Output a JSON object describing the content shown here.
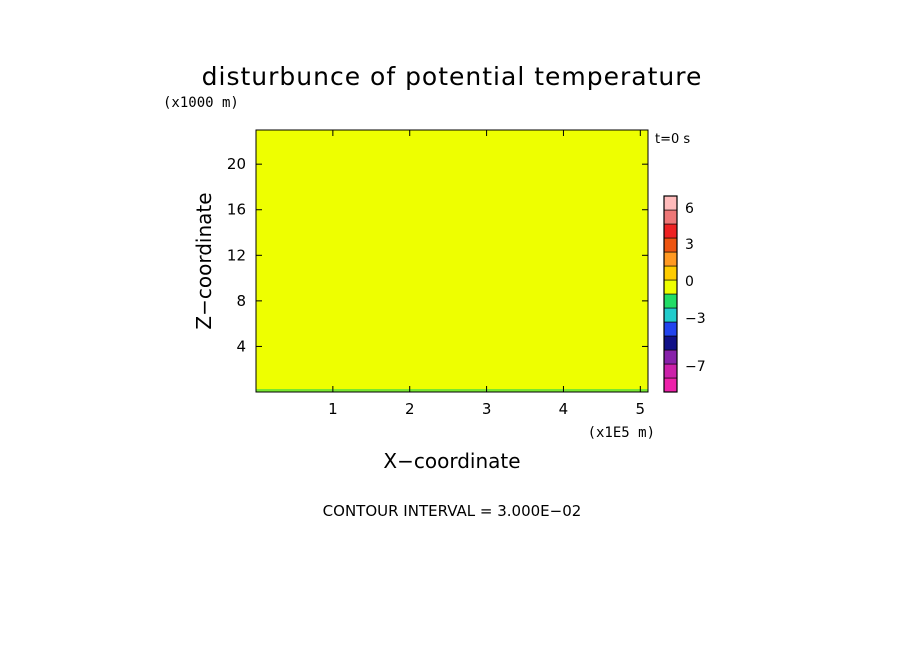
{
  "chart_data": {
    "type": "heatmap",
    "title": "disturbunce of potential temperature",
    "xlabel": "X−coordinate",
    "ylabel": "Z−coordinate",
    "x_unit": "(x1E5 m)",
    "y_unit": "(x1000 m)",
    "time_label": "t=0 s",
    "footer": "CONTOUR INTERVAL = 3.000E−02",
    "xlim": [
      0,
      5.1
    ],
    "ylim": [
      0,
      23
    ],
    "x_ticks": [
      1,
      2,
      3,
      4,
      5
    ],
    "y_ticks": [
      4,
      8,
      12,
      16,
      20
    ],
    "field_value": 0,
    "field_color": "#eeff00",
    "surface_band_color": "#44dd44",
    "colorbar": {
      "colors": [
        "#ee22aa",
        "#cc22aa",
        "#8822aa",
        "#111188",
        "#2244ee",
        "#22cccc",
        "#22dd66",
        "#eeff00",
        "#ffcc00",
        "#ff9922",
        "#ee5511",
        "#ee2222",
        "#ee7777",
        "#ffbbbb"
      ],
      "labels": [
        "-7",
        "-3",
        "0",
        "3",
        "6"
      ]
    }
  }
}
